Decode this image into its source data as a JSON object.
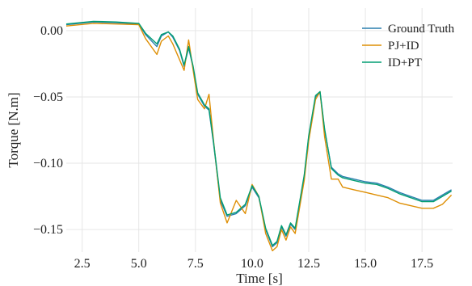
{
  "chart_data": {
    "type": "line",
    "title": "",
    "xlabel": "Time [s]",
    "ylabel": "Torque [N.m]",
    "xlim": [
      1.8,
      18.85
    ],
    "ylim": [
      -0.167,
      0.017
    ],
    "xticks": [
      2.5,
      5.0,
      7.5,
      10.0,
      12.5,
      15.0,
      17.5
    ],
    "xtick_labels": [
      "2.5",
      "5.0",
      "7.5",
      "10.0",
      "12.5",
      "15.0",
      "17.5"
    ],
    "yticks": [
      0.0,
      -0.05,
      -0.1,
      -0.15
    ],
    "ytick_labels": [
      "0.00",
      "−0.05",
      "−0.10",
      "−0.15"
    ],
    "grid": true,
    "legend_position": "top-right",
    "series": [
      {
        "name": "Ground Truth",
        "color": "#2a7fae",
        "x": [
          1.8,
          3.0,
          4.0,
          5.0,
          5.3,
          5.8,
          6.0,
          6.3,
          6.5,
          6.8,
          7.0,
          7.2,
          7.4,
          7.6,
          7.9,
          8.1,
          8.3,
          8.6,
          8.9,
          9.3,
          9.7,
          10.0,
          10.3,
          10.6,
          10.9,
          11.1,
          11.3,
          11.5,
          11.7,
          11.9,
          12.1,
          12.3,
          12.5,
          12.8,
          13.0,
          13.2,
          13.5,
          13.8,
          14.0,
          14.5,
          15.0,
          15.5,
          16.0,
          16.5,
          17.0,
          17.5,
          18.0,
          18.4,
          18.8
        ],
        "y": [
          0.0045,
          0.0065,
          0.006,
          0.005,
          -0.003,
          -0.012,
          -0.004,
          -0.001,
          -0.005,
          -0.015,
          -0.027,
          -0.013,
          -0.028,
          -0.048,
          -0.057,
          -0.06,
          -0.085,
          -0.128,
          -0.14,
          -0.138,
          -0.132,
          -0.118,
          -0.126,
          -0.15,
          -0.163,
          -0.16,
          -0.148,
          -0.155,
          -0.146,
          -0.15,
          -0.13,
          -0.11,
          -0.08,
          -0.05,
          -0.047,
          -0.075,
          -0.103,
          -0.108,
          -0.11,
          -0.112,
          -0.114,
          -0.115,
          -0.118,
          -0.122,
          -0.125,
          -0.128,
          -0.128,
          -0.124,
          -0.12
        ]
      },
      {
        "name": "PJ+ID",
        "color": "#de8f05",
        "x": [
          1.8,
          3.0,
          4.0,
          5.0,
          5.3,
          5.8,
          6.0,
          6.3,
          6.5,
          6.8,
          7.0,
          7.2,
          7.4,
          7.6,
          7.9,
          8.1,
          8.3,
          8.6,
          8.9,
          9.3,
          9.7,
          10.0,
          10.3,
          10.6,
          10.9,
          11.1,
          11.3,
          11.5,
          11.7,
          11.9,
          12.1,
          12.3,
          12.5,
          12.8,
          13.0,
          13.2,
          13.5,
          13.8,
          14.0,
          14.5,
          15.0,
          15.5,
          16.0,
          16.5,
          17.0,
          17.5,
          18.0,
          18.4,
          18.8
        ],
        "y": [
          0.0035,
          0.0055,
          0.005,
          0.0045,
          -0.006,
          -0.018,
          -0.008,
          -0.004,
          -0.01,
          -0.022,
          -0.03,
          -0.007,
          -0.03,
          -0.052,
          -0.059,
          -0.048,
          -0.083,
          -0.13,
          -0.145,
          -0.128,
          -0.138,
          -0.116,
          -0.125,
          -0.153,
          -0.166,
          -0.163,
          -0.15,
          -0.158,
          -0.148,
          -0.153,
          -0.133,
          -0.113,
          -0.083,
          -0.052,
          -0.046,
          -0.08,
          -0.112,
          -0.112,
          -0.118,
          -0.12,
          -0.122,
          -0.124,
          -0.126,
          -0.13,
          -0.132,
          -0.134,
          -0.134,
          -0.131,
          -0.124
        ]
      },
      {
        "name": "ID+PT",
        "color": "#029e73",
        "x": [
          1.8,
          3.0,
          4.0,
          5.0,
          5.3,
          5.8,
          6.0,
          6.3,
          6.5,
          6.8,
          7.0,
          7.2,
          7.4,
          7.6,
          7.9,
          8.1,
          8.3,
          8.6,
          8.9,
          9.3,
          9.7,
          10.0,
          10.3,
          10.6,
          10.9,
          11.1,
          11.3,
          11.5,
          11.7,
          11.9,
          12.1,
          12.3,
          12.5,
          12.8,
          13.0,
          13.2,
          13.5,
          13.8,
          14.0,
          14.5,
          15.0,
          15.5,
          16.0,
          16.5,
          17.0,
          17.5,
          18.0,
          18.4,
          18.8
        ],
        "y": [
          0.005,
          0.007,
          0.0065,
          0.0055,
          -0.002,
          -0.01,
          -0.003,
          -0.001,
          -0.004,
          -0.014,
          -0.026,
          -0.012,
          -0.027,
          -0.047,
          -0.056,
          -0.059,
          -0.084,
          -0.126,
          -0.139,
          -0.137,
          -0.131,
          -0.117,
          -0.125,
          -0.149,
          -0.162,
          -0.159,
          -0.147,
          -0.154,
          -0.145,
          -0.149,
          -0.129,
          -0.109,
          -0.079,
          -0.049,
          -0.046,
          -0.074,
          -0.104,
          -0.109,
          -0.111,
          -0.113,
          -0.115,
          -0.116,
          -0.119,
          -0.123,
          -0.126,
          -0.129,
          -0.129,
          -0.125,
          -0.121
        ]
      }
    ]
  }
}
